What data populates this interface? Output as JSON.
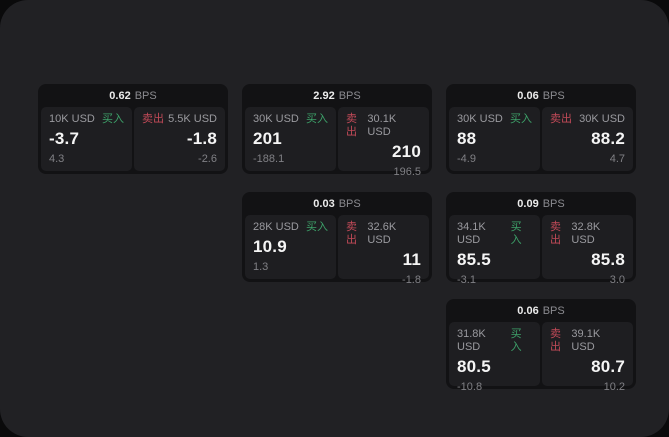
{
  "labels": {
    "bps_unit": "BPS",
    "buy": "买入",
    "sell": "卖出"
  },
  "colors": {
    "backdrop": "#0a0a0b",
    "surface": "#212124",
    "card": "#121214",
    "panel": "#1e1e21",
    "buy": "#3da169",
    "sell": "#c24a58",
    "price_text": "#f5f5f5",
    "muted_text": "#9a9a9f",
    "faint_text": "#808085"
  },
  "cards": [
    {
      "bps": "0.62",
      "buy": {
        "notional": "10K USD",
        "price": "-3.7",
        "delta": "4.3"
      },
      "sell": {
        "notional": "5.5K USD",
        "price": "-1.8",
        "delta": "-2.6"
      }
    },
    {
      "bps": "2.92",
      "buy": {
        "notional": "30K USD",
        "price": "201",
        "delta": "-188.1"
      },
      "sell": {
        "notional": "30.1K USD",
        "price": "210",
        "delta": "196.5"
      }
    },
    {
      "bps": "0.06",
      "buy": {
        "notional": "30K USD",
        "price": "88",
        "delta": "-4.9"
      },
      "sell": {
        "notional": "30K USD",
        "price": "88.2",
        "delta": "4.7"
      }
    },
    {
      "bps": "0.03",
      "buy": {
        "notional": "28K USD",
        "price": "10.9",
        "delta": "1.3"
      },
      "sell": {
        "notional": "32.6K USD",
        "price": "11",
        "delta": "-1.8"
      }
    },
    {
      "bps": "0.09",
      "buy": {
        "notional": "34.1K USD",
        "price": "85.5",
        "delta": "-3.1"
      },
      "sell": {
        "notional": "32.8K USD",
        "price": "85.8",
        "delta": "3.0"
      }
    },
    {
      "bps": "0.06",
      "buy": {
        "notional": "31.8K USD",
        "price": "80.5",
        "delta": "-10.8"
      },
      "sell": {
        "notional": "39.1K USD",
        "price": "80.7",
        "delta": "10.2"
      }
    }
  ]
}
